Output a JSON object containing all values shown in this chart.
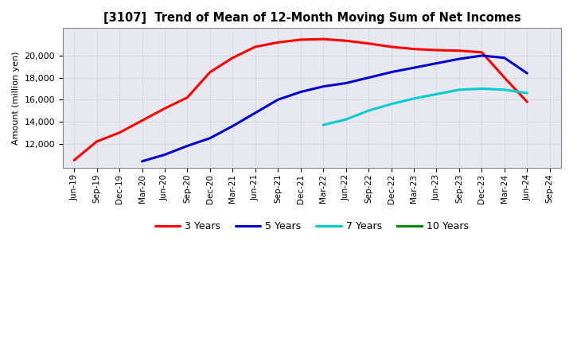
{
  "title": "[3107]  Trend of Mean of 12-Month Moving Sum of Net Incomes",
  "ylabel": "Amount (million yen)",
  "background_color": "#ffffff",
  "plot_bg_color": "#e8e8f0",
  "grid_color": "#bbbbbb",
  "x_labels": [
    "Jun-19",
    "Sep-19",
    "Dec-19",
    "Mar-20",
    "Jun-20",
    "Sep-20",
    "Dec-20",
    "Mar-21",
    "Jun-21",
    "Sep-21",
    "Dec-21",
    "Mar-22",
    "Jun-22",
    "Sep-22",
    "Dec-22",
    "Mar-23",
    "Jun-23",
    "Sep-23",
    "Dec-23",
    "Mar-24",
    "Jun-24",
    "Sep-24"
  ],
  "series": [
    {
      "name": "3 Years",
      "color": "#ff0000",
      "data": [
        10500,
        12200,
        13000,
        null,
        15200,
        16200,
        18500,
        19800,
        20800,
        21200,
        21450,
        21500,
        21350,
        21100,
        20800,
        20600,
        20500,
        20450,
        20300,
        18000,
        15800,
        null
      ]
    },
    {
      "name": "5 Years",
      "color": "#0000cc",
      "data": [
        null,
        null,
        null,
        10400,
        11000,
        11800,
        12500,
        13600,
        14800,
        16000,
        16700,
        17200,
        17500,
        18000,
        18500,
        18900,
        19300,
        19700,
        20000,
        19800,
        18400,
        null
      ]
    },
    {
      "name": "7 Years",
      "color": "#00cccc",
      "data": [
        null,
        null,
        null,
        null,
        null,
        null,
        null,
        null,
        null,
        null,
        null,
        13700,
        14200,
        15000,
        15600,
        16100,
        16500,
        16900,
        17000,
        16900,
        16600,
        null
      ]
    },
    {
      "name": "10 Years",
      "color": "#008800",
      "data": [
        null,
        null,
        null,
        null,
        null,
        null,
        null,
        null,
        null,
        null,
        null,
        null,
        null,
        null,
        null,
        null,
        null,
        null,
        null,
        null,
        null,
        null
      ]
    }
  ],
  "ylim": [
    9800,
    22500
  ],
  "yticks": [
    12000,
    14000,
    16000,
    18000,
    20000
  ],
  "linewidth": 2.2
}
